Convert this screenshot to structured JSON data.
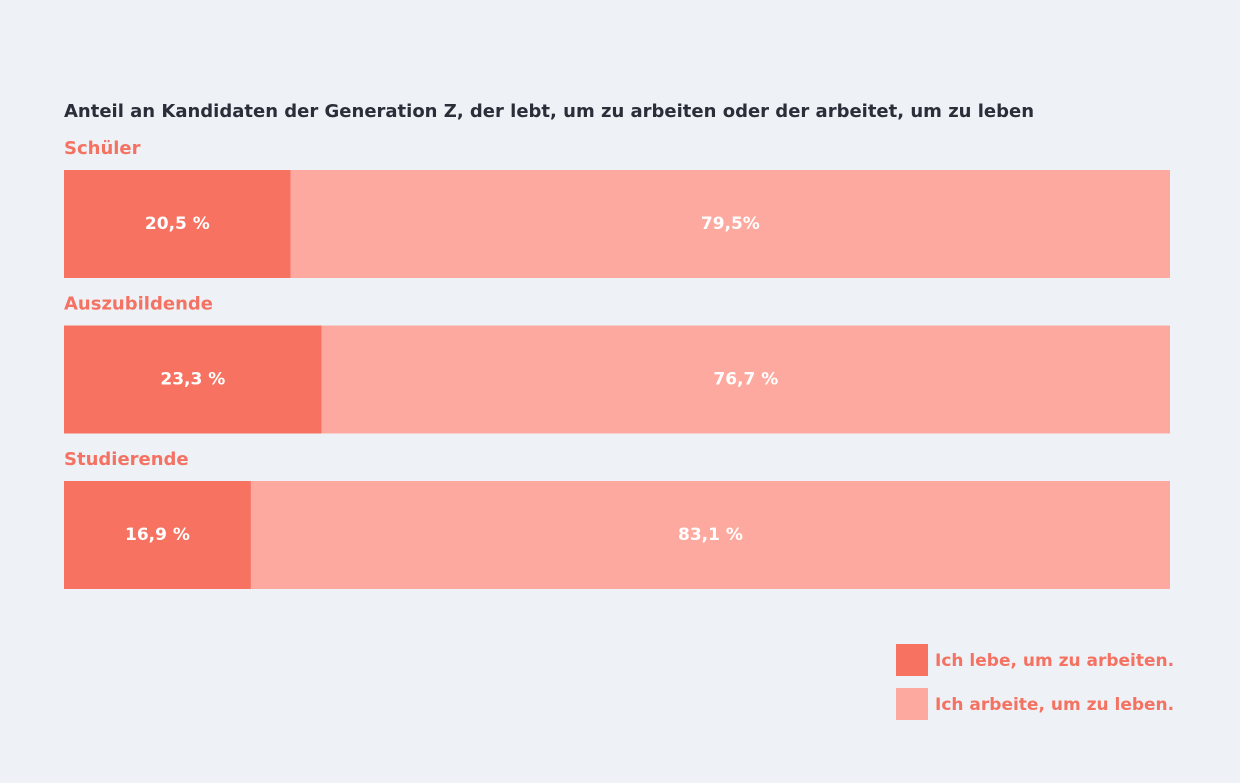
{
  "chart_data": {
    "type": "bar",
    "orientation": "horizontal",
    "stacked": true,
    "title": "Anteil an Kandidaten der Generation Z, der lebt, um zu arbeiten oder der arbeitet, um zu leben",
    "categories": [
      "Schüler",
      "Auszubildende",
      "Studierende"
    ],
    "series": [
      {
        "name": "Ich lebe, um zu arbeiten.",
        "color": "#f87261",
        "values": [
          20.5,
          23.3,
          16.9
        ],
        "value_labels": [
          "20,5 %",
          "23,3 %",
          "16,9 %"
        ]
      },
      {
        "name": "Ich arbeite, um zu leben.",
        "color": "#fea99f",
        "values": [
          79.5,
          76.7,
          83.1
        ],
        "value_labels": [
          "79,5%",
          "76,7 %",
          "83,1 %"
        ]
      }
    ],
    "legend": "bottom-right"
  }
}
